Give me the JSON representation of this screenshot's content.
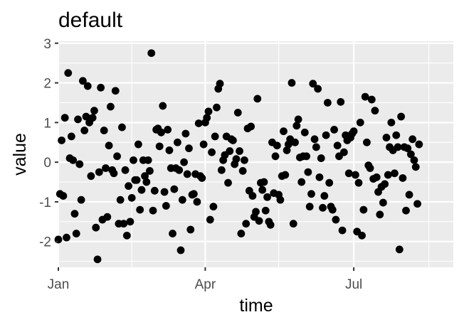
{
  "chart_data": {
    "type": "scatter",
    "title": "default",
    "xlabel": "time",
    "ylabel": "value",
    "x_scale": "date",
    "xlim": [
      "2021-01-01",
      "2021-08-31"
    ],
    "ylim": [
      -2.65,
      3.05
    ],
    "x_ticks": [
      {
        "label": "Jan",
        "date": "2021-01-01"
      },
      {
        "label": "Apr",
        "date": "2021-04-01"
      },
      {
        "label": "Jul",
        "date": "2021-07-01"
      }
    ],
    "x_minor_ticks": [
      "2021-02-15",
      "2021-05-16",
      "2021-08-16"
    ],
    "y_ticks": [
      3,
      2,
      1,
      0,
      -1,
      -2
    ],
    "grid": true,
    "background": "#ebebeb",
    "point_color": "#000000",
    "points": [
      [
        "2021-01-01",
        -1.95
      ],
      [
        "2021-01-02",
        -0.8
      ],
      [
        "2021-01-03",
        0.55
      ],
      [
        "2021-01-04",
        -0.85
      ],
      [
        "2021-01-05",
        1.12
      ],
      [
        "2021-01-06",
        -1.9
      ],
      [
        "2021-01-07",
        2.25
      ],
      [
        "2021-01-08",
        0.1
      ],
      [
        "2021-01-09",
        0.65
      ],
      [
        "2021-01-10",
        0.05
      ],
      [
        "2021-01-11",
        -1.3
      ],
      [
        "2021-01-12",
        -1.8
      ],
      [
        "2021-01-13",
        1.08
      ],
      [
        "2021-01-14",
        -0.05
      ],
      [
        "2021-01-15",
        -0.95
      ],
      [
        "2021-01-16",
        2.05
      ],
      [
        "2021-01-17",
        0.8
      ],
      [
        "2021-01-18",
        1.15
      ],
      [
        "2021-01-19",
        1.92
      ],
      [
        "2021-01-20",
        1.0
      ],
      [
        "2021-01-21",
        -0.35
      ],
      [
        "2021-01-22",
        1.12
      ],
      [
        "2021-01-23",
        1.3
      ],
      [
        "2021-01-24",
        -1.65
      ],
      [
        "2021-01-25",
        -2.45
      ],
      [
        "2021-01-26",
        -0.25
      ],
      [
        "2021-01-27",
        1.88
      ],
      [
        "2021-01-28",
        -1.45
      ],
      [
        "2021-01-29",
        0.8
      ],
      [
        "2021-01-30",
        -0.15
      ],
      [
        "2021-01-31",
        -1.38
      ],
      [
        "2021-02-01",
        0.42
      ],
      [
        "2021-02-02",
        1.4
      ],
      [
        "2021-02-03",
        -0.2
      ],
      [
        "2021-02-04",
        -0.28
      ],
      [
        "2021-02-05",
        1.8
      ],
      [
        "2021-02-06",
        0.15
      ],
      [
        "2021-02-07",
        -1.55
      ],
      [
        "2021-02-08",
        -0.95
      ],
      [
        "2021-02-09",
        0.88
      ],
      [
        "2021-02-10",
        -1.55
      ],
      [
        "2021-02-11",
        -0.2
      ],
      [
        "2021-02-12",
        -1.85
      ],
      [
        "2021-02-13",
        -0.6
      ],
      [
        "2021-02-14",
        -1.5
      ],
      [
        "2021-02-15",
        -0.9
      ],
      [
        "2021-02-16",
        0.05
      ],
      [
        "2021-02-17",
        -0.45
      ],
      [
        "2021-02-18",
        -0.45
      ],
      [
        "2021-02-19",
        0.45
      ],
      [
        "2021-02-20",
        -1.2
      ],
      [
        "2021-02-21",
        -0.7
      ],
      [
        "2021-02-22",
        0.05
      ],
      [
        "2021-02-23",
        -0.35
      ],
      [
        "2021-02-24",
        -0.5
      ],
      [
        "2021-02-25",
        0.05
      ],
      [
        "2021-02-26",
        -0.22
      ],
      [
        "2021-02-27",
        2.75
      ],
      [
        "2021-02-28",
        -1.22
      ],
      [
        "2021-03-01",
        -0.72
      ],
      [
        "2021-03-02",
        0.82
      ],
      [
        "2021-03-03",
        0.85
      ],
      [
        "2021-03-04",
        0.4
      ],
      [
        "2021-03-05",
        0.75
      ],
      [
        "2021-03-06",
        1.42
      ],
      [
        "2021-03-07",
        -0.75
      ],
      [
        "2021-03-08",
        -1.1
      ],
      [
        "2021-03-09",
        0.82
      ],
      [
        "2021-03-10",
        0.3
      ],
      [
        "2021-03-11",
        -0.15
      ],
      [
        "2021-03-12",
        -1.8
      ],
      [
        "2021-03-13",
        -0.68
      ],
      [
        "2021-03-14",
        -0.15
      ],
      [
        "2021-03-15",
        0.5
      ],
      [
        "2021-03-16",
        -0.2
      ],
      [
        "2021-03-17",
        -2.22
      ],
      [
        "2021-03-18",
        -0.95
      ],
      [
        "2021-03-19",
        0.0
      ],
      [
        "2021-03-20",
        0.72
      ],
      [
        "2021-03-21",
        -0.3
      ],
      [
        "2021-03-22",
        0.35
      ],
      [
        "2021-03-23",
        -1.7
      ],
      [
        "2021-03-24",
        -0.82
      ],
      [
        "2021-03-25",
        -0.8
      ],
      [
        "2021-03-26",
        -0.3
      ],
      [
        "2021-03-27",
        -1.0
      ],
      [
        "2021-03-28",
        0.98
      ],
      [
        "2021-03-29",
        -0.35
      ],
      [
        "2021-03-30",
        -0.4
      ],
      [
        "2021-03-31",
        0.45
      ],
      [
        "2021-04-01",
        1.0
      ],
      [
        "2021-04-02",
        1.12
      ],
      [
        "2021-04-03",
        1.28
      ],
      [
        "2021-04-04",
        -1.45
      ],
      [
        "2021-04-05",
        0.25
      ],
      [
        "2021-04-06",
        -1.12
      ],
      [
        "2021-04-07",
        0.65
      ],
      [
        "2021-04-08",
        1.38
      ],
      [
        "2021-04-09",
        1.85
      ],
      [
        "2021-04-10",
        1.98
      ],
      [
        "2021-04-11",
        -0.2
      ],
      [
        "2021-04-12",
        0.05
      ],
      [
        "2021-04-13",
        0.18
      ],
      [
        "2021-04-14",
        0.65
      ],
      [
        "2021-04-15",
        -0.52
      ],
      [
        "2021-04-16",
        0.28
      ],
      [
        "2021-04-17",
        0.58
      ],
      [
        "2021-04-18",
        0.55
      ],
      [
        "2021-04-19",
        -0.05
      ],
      [
        "2021-04-20",
        0.08
      ],
      [
        "2021-04-21",
        1.25
      ],
      [
        "2021-04-22",
        0.28
      ],
      [
        "2021-04-23",
        -1.8
      ],
      [
        "2021-04-24",
        -0.22
      ],
      [
        "2021-04-25",
        0.05
      ],
      [
        "2021-04-26",
        -1.55
      ],
      [
        "2021-04-27",
        0.85
      ],
      [
        "2021-04-28",
        -0.72
      ],
      [
        "2021-04-29",
        0.9
      ],
      [
        "2021-04-30",
        -0.85
      ],
      [
        "2021-05-01",
        -1.38
      ],
      [
        "2021-05-02",
        -1.25
      ],
      [
        "2021-05-03",
        1.6
      ],
      [
        "2021-05-04",
        -1.48
      ],
      [
        "2021-05-05",
        -0.52
      ],
      [
        "2021-05-06",
        -0.7
      ],
      [
        "2021-05-07",
        -0.5
      ],
      [
        "2021-05-08",
        -1.22
      ],
      [
        "2021-05-09",
        -0.88
      ],
      [
        "2021-05-10",
        -1.5
      ],
      [
        "2021-05-11",
        -1.58
      ],
      [
        "2021-05-12",
        0.5
      ],
      [
        "2021-05-13",
        -0.78
      ],
      [
        "2021-05-14",
        0.15
      ],
      [
        "2021-05-15",
        0.42
      ],
      [
        "2021-05-16",
        -0.82
      ],
      [
        "2021-05-17",
        -0.95
      ],
      [
        "2021-05-18",
        -0.35
      ],
      [
        "2021-05-19",
        0.78
      ],
      [
        "2021-05-20",
        -0.32
      ],
      [
        "2021-05-21",
        0.3
      ],
      [
        "2021-05-22",
        0.45
      ],
      [
        "2021-05-23",
        0.58
      ],
      [
        "2021-05-24",
        2.0
      ],
      [
        "2021-05-25",
        -1.55
      ],
      [
        "2021-05-26",
        0.5
      ],
      [
        "2021-05-27",
        0.92
      ],
      [
        "2021-05-28",
        1.08
      ],
      [
        "2021-05-29",
        0.12
      ],
      [
        "2021-05-30",
        -0.5
      ],
      [
        "2021-05-31",
        0.15
      ],
      [
        "2021-06-01",
        0.75
      ],
      [
        "2021-06-02",
        0.15
      ],
      [
        "2021-06-03",
        -0.25
      ],
      [
        "2021-06-04",
        -1.12
      ],
      [
        "2021-06-05",
        -0.8
      ],
      [
        "2021-06-06",
        1.98
      ],
      [
        "2021-06-07",
        0.58
      ],
      [
        "2021-06-08",
        0.38
      ],
      [
        "2021-06-09",
        1.85
      ],
      [
        "2021-06-10",
        -0.38
      ],
      [
        "2021-06-11",
        0.1
      ],
      [
        "2021-06-12",
        -1.15
      ],
      [
        "2021-06-13",
        -0.85
      ],
      [
        "2021-06-14",
        0.68
      ],
      [
        "2021-06-15",
        1.5
      ],
      [
        "2021-06-16",
        -0.52
      ],
      [
        "2021-06-17",
        -1.12
      ],
      [
        "2021-06-18",
        -1.2
      ],
      [
        "2021-06-19",
        0.82
      ],
      [
        "2021-06-20",
        -1.45
      ],
      [
        "2021-06-21",
        0.42
      ],
      [
        "2021-06-22",
        0.15
      ],
      [
        "2021-06-23",
        1.52
      ],
      [
        "2021-06-24",
        -1.72
      ],
      [
        "2021-06-25",
        0.25
      ],
      [
        "2021-06-26",
        0.68
      ],
      [
        "2021-06-27",
        0.55
      ],
      [
        "2021-06-28",
        -0.28
      ],
      [
        "2021-06-29",
        0.62
      ],
      [
        "2021-06-30",
        0.72
      ],
      [
        "2021-07-01",
        0.78
      ],
      [
        "2021-07-02",
        -0.32
      ],
      [
        "2021-07-03",
        -1.75
      ],
      [
        "2021-07-04",
        -0.52
      ],
      [
        "2021-07-05",
        1.0
      ],
      [
        "2021-07-06",
        -1.85
      ],
      [
        "2021-07-07",
        -1.2
      ],
      [
        "2021-07-08",
        1.65
      ],
      [
        "2021-07-09",
        0.5
      ],
      [
        "2021-07-10",
        -0.08
      ],
      [
        "2021-07-11",
        -0.15
      ],
      [
        "2021-07-12",
        1.58
      ],
      [
        "2021-07-13",
        -0.42
      ],
      [
        "2021-07-14",
        1.3
      ],
      [
        "2021-07-15",
        -0.38
      ],
      [
        "2021-07-16",
        -0.75
      ],
      [
        "2021-07-17",
        -1.32
      ],
      [
        "2021-07-18",
        -0.62
      ],
      [
        "2021-07-19",
        -1.02
      ],
      [
        "2021-07-20",
        -0.55
      ],
      [
        "2021-07-21",
        0.62
      ],
      [
        "2021-07-22",
        -0.32
      ],
      [
        "2021-07-23",
        0.38
      ],
      [
        "2021-07-24",
        1.0
      ],
      [
        "2021-07-25",
        0.3
      ],
      [
        "2021-07-26",
        -0.28
      ],
      [
        "2021-07-27",
        0.68
      ],
      [
        "2021-07-28",
        0.38
      ],
      [
        "2021-07-29",
        -2.2
      ],
      [
        "2021-07-30",
        1.15
      ],
      [
        "2021-07-31",
        -0.4
      ],
      [
        "2021-08-01",
        0.38
      ],
      [
        "2021-08-02",
        -1.22
      ],
      [
        "2021-08-03",
        0.35
      ],
      [
        "2021-08-04",
        -0.82
      ],
      [
        "2021-08-05",
        0.2
      ],
      [
        "2021-08-06",
        0.58
      ],
      [
        "2021-08-07",
        0.05
      ],
      [
        "2021-08-08",
        -0.12
      ],
      [
        "2021-08-09",
        -1.05
      ],
      [
        "2021-08-10",
        0.45
      ]
    ]
  }
}
